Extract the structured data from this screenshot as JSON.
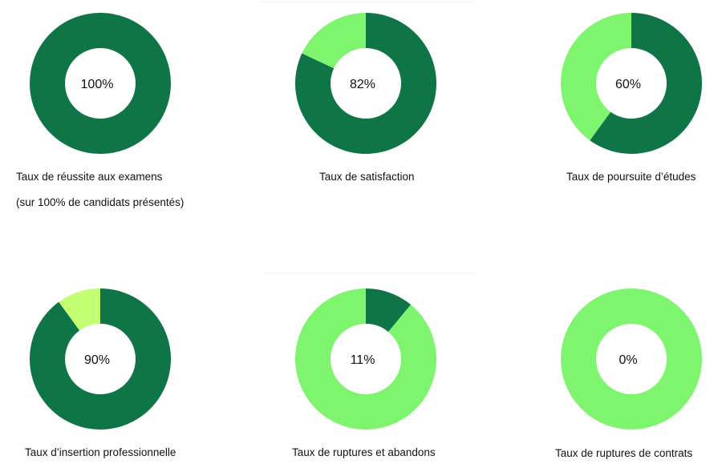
{
  "chart_data": [
    {
      "type": "pie",
      "center_label": "100%",
      "values": [
        100,
        0
      ],
      "colors": [
        "#0f7446",
        "#7ff56f"
      ],
      "caption_lines": [
        "Taux de réussite aux examens",
        "(sur 100% de candidats présentés)"
      ]
    },
    {
      "type": "pie",
      "center_label": "82%",
      "values": [
        82,
        18
      ],
      "colors": [
        "#0f7446",
        "#7ff56f"
      ],
      "caption_lines": [
        "Taux de satisfaction"
      ]
    },
    {
      "type": "pie",
      "center_label": "60%",
      "values": [
        60,
        40
      ],
      "colors": [
        "#0f7446",
        "#7ff56f"
      ],
      "caption_lines": [
        "Taux de poursuite d’études"
      ]
    },
    {
      "type": "pie",
      "center_label": "90%",
      "values": [
        90,
        10
      ],
      "colors": [
        "#0f7446",
        "#c2ff72"
      ],
      "caption_lines": [
        "Taux d’insertion professionnelle"
      ]
    },
    {
      "type": "pie",
      "center_label": "11%",
      "values": [
        11,
        89
      ],
      "colors": [
        "#0f7446",
        "#7ff56f"
      ],
      "caption_lines": [
        "Taux de ruptures et abandons"
      ]
    },
    {
      "type": "pie",
      "center_label": "0%",
      "values": [
        0,
        100
      ],
      "colors": [
        "#0f7446",
        "#7ff56f"
      ],
      "caption_lines": [
        "Taux de ruptures de contrats"
      ]
    }
  ]
}
